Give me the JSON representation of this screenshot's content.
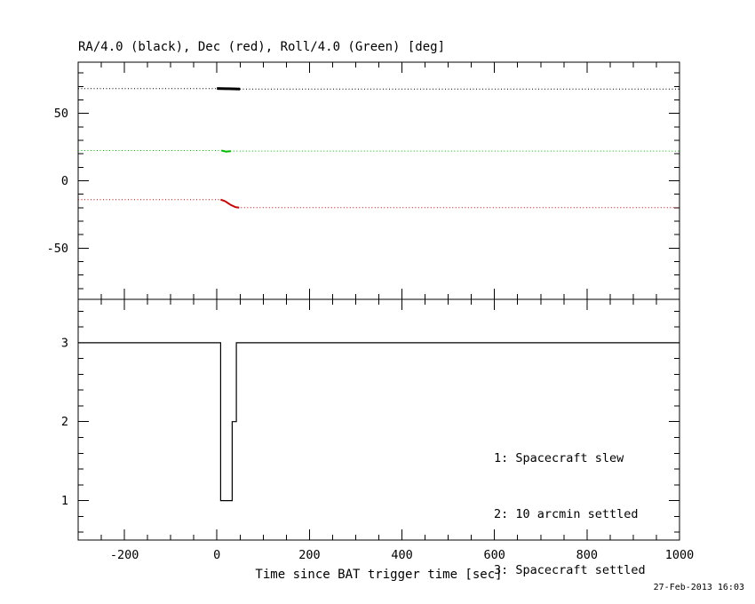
{
  "datestamp": "27-Feb-2013 16:03",
  "background": "#ffffff",
  "frame_color": "#000000",
  "chart_data": [
    {
      "type": "line",
      "panel": "attitude",
      "title": "RA/4.0 (black), Dec (red), Roll/4.0 (Green) [deg]",
      "xlim": [
        -300,
        1000
      ],
      "ylim": [
        -88,
        88
      ],
      "xticks": [
        -200,
        0,
        200,
        400,
        600,
        800,
        1000
      ],
      "xtick_labels": [],
      "xminor": 50,
      "yticks": [
        -50,
        0,
        50
      ],
      "ytick_labels": [
        "-50",
        "0",
        "50"
      ],
      "yminor": 10,
      "grid": false,
      "legend_position": "none",
      "series": [
        {
          "name": "ra-div-4-track",
          "color": "#000000",
          "style": "dotted",
          "width": 1,
          "points": [
            [
              -300,
              68.4
            ],
            [
              0,
              68.4
            ],
            [
              50,
              68.1
            ],
            [
              1000,
              68.1
            ]
          ]
        },
        {
          "name": "ra-div-4-slew",
          "color": "#000000",
          "style": "solid",
          "width": 3,
          "points": [
            [
              0,
              68.5
            ],
            [
              25,
              68.3
            ],
            [
              50,
              68.1
            ]
          ]
        },
        {
          "name": "dec-track",
          "color": "#cc0000",
          "style": "dotted",
          "width": 1,
          "points": [
            [
              -300,
              -14
            ],
            [
              8,
              -14
            ],
            [
              18,
              -15.2
            ],
            [
              30,
              -18
            ],
            [
              40,
              -19.6
            ],
            [
              48,
              -20
            ],
            [
              1000,
              -20
            ]
          ]
        },
        {
          "name": "dec-slew",
          "color": "#cc0000",
          "style": "solid",
          "width": 2,
          "points": [
            [
              8,
              -14
            ],
            [
              18,
              -15.2
            ],
            [
              30,
              -18
            ],
            [
              40,
              -19.6
            ],
            [
              48,
              -20
            ]
          ]
        },
        {
          "name": "roll-div-4-track",
          "color": "#00bb00",
          "style": "dotted",
          "width": 1,
          "points": [
            [
              -300,
              22.4
            ],
            [
              10,
              22.4
            ],
            [
              20,
              21.6
            ],
            [
              30,
              22.0
            ],
            [
              1000,
              22.0
            ]
          ]
        },
        {
          "name": "roll-div-4-slew",
          "color": "#00bb00",
          "style": "solid",
          "width": 2,
          "points": [
            [
              10,
              22.4
            ],
            [
              20,
              21.6
            ],
            [
              30,
              22.0
            ]
          ]
        }
      ]
    },
    {
      "type": "line",
      "panel": "settled-flag",
      "xlabel": "Time since BAT trigger time [sec]",
      "xlim": [
        -300,
        1000
      ],
      "ylim": [
        0.5,
        3.55
      ],
      "xticks": [
        -200,
        0,
        200,
        400,
        600,
        800,
        1000
      ],
      "xtick_labels": [
        "-200",
        "0",
        "200",
        "400",
        "600",
        "800",
        "1000"
      ],
      "xminor": 50,
      "yticks": [
        1,
        2,
        3
      ],
      "ytick_labels": [
        "1",
        "2",
        "3"
      ],
      "yminor": 0.2,
      "grid": false,
      "legend_position": "inside-right",
      "series": [
        {
          "name": "settled-flag-step",
          "color": "#000000",
          "style": "solid",
          "width": 1.2,
          "points": [
            [
              -300,
              3
            ],
            [
              8,
              3
            ],
            [
              8,
              1
            ],
            [
              33,
              1
            ],
            [
              33,
              2
            ],
            [
              42,
              2
            ],
            [
              42,
              3
            ],
            [
              1000,
              3
            ]
          ]
        }
      ],
      "annotations": [
        "1: Spacecraft slew",
        "2: 10 arcmin settled",
        "3: Spacecraft settled"
      ]
    }
  ]
}
